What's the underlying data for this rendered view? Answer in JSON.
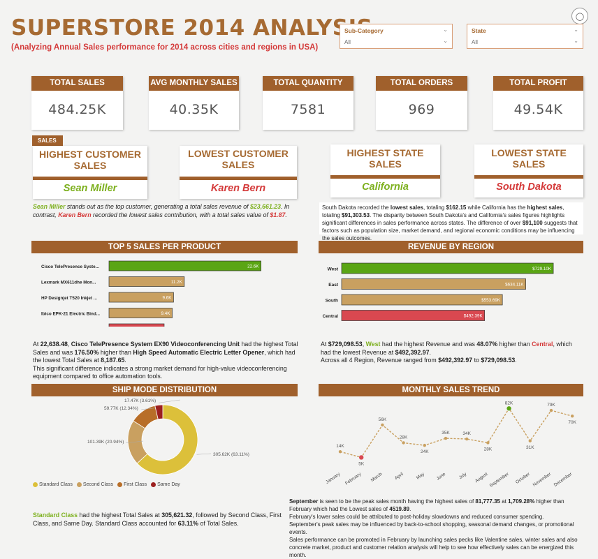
{
  "title": "SUPERSTORE 2014 ANALYSIS",
  "subtitle": "(Analyzing Annual Sales performance for 2014 across cities and regions in USA)",
  "filters": {
    "subcategory": {
      "label": "Sub-Category",
      "value": "All"
    },
    "state": {
      "label": "State",
      "value": "All"
    }
  },
  "kpis": [
    {
      "label": "TOTAL SALES",
      "value": "484.25K"
    },
    {
      "label": "AVG MONTHLY SALES",
      "value": "40.35K"
    },
    {
      "label": "TOTAL QUANTITY",
      "value": "7581"
    },
    {
      "label": "TOTAL ORDERS",
      "value": "969"
    },
    {
      "label": "TOTAL PROFIT",
      "value": "49.54K"
    }
  ],
  "sales_tag": "SALES",
  "cards": [
    {
      "label": "HIGHEST CUSTOMER SALES",
      "name": "Sean Miller"
    },
    {
      "label": "LOWEST CUSTOMER SALES",
      "name": "Karen Bern"
    },
    {
      "label": "HIGHEST STATE SALES",
      "name": "California"
    },
    {
      "label": "LOWEST STATE SALES",
      "name": "South Dakota"
    }
  ],
  "customer_note": {
    "p1": "Sean Miller",
    "p2": " stands out as the top customer, generating a total sales revenue of ",
    "p3": "$23,661.23",
    "p4": ". In contrast, ",
    "p5": "Karen Bern",
    "p6": " recorded the lowest sales contribution, with a total sales value of ",
    "p7": "$1.87",
    "p8": "."
  },
  "state_note": {
    "p1": "South Dakota recorded the ",
    "p2": "lowest sales",
    "p3": ", totaling ",
    "p4": "$162.15",
    "p5": " while California has the ",
    "p6": "highest sales",
    "p7": ", totaling ",
    "p8": "$91,303.53",
    "p9": ". The disparity between South Dakota's and California's sales figures highlights significant differences in sales performance across states. The difference of over ",
    "p10": "$91,100",
    "p11": " suggests that factors such as population size, market demand, and regional economic conditions may be influencing the sales outcomes."
  },
  "sections": {
    "top5": "TOP 5 SALES PER PRODUCT",
    "region": "REVENUE BY REGION",
    "shipmode": "SHIP MODE DISTRIBUTION",
    "monthly": "MONTHLY SALES TREND"
  },
  "product_note": {
    "p1": "At ",
    "p2": "22,638.48",
    "p3": ", ",
    "p4": "Cisco TelePresence System EX90 Videoconferencing Unit",
    "p5": " had the highest Total Sales and was ",
    "p6": "176.50%",
    "p7": " higher than ",
    "p8": "High Speed Automatic Electric Letter Opener",
    "p9": ", which had the lowest Total Sales at ",
    "p10": "8,187.65",
    "p11": ".",
    "p12": "This significant difference indicates a strong market demand for high-value videoconferencing equipment compared to office automation tools."
  },
  "region_note": {
    "p1": "At ",
    "p2": "$729,098.53",
    "p3": ", ",
    "p4": "West",
    "p5": " had the highest Revenue and was ",
    "p6": "48.07%",
    "p7": " higher than ",
    "p8": "Central",
    "p9": ", which had the lowest Revenue at ",
    "p10": "$492,392.97",
    "p11": ".",
    "p12": "Across all 4 Region, Revenue ranged from ",
    "p13": "$492,392.97",
    "p14": " to ",
    "p15": "$729,098.53",
    "p16": "."
  },
  "ship_note": {
    "p1": "Standard Class",
    "p2": " had the highest Total Sales at ",
    "p3": "305,621.32",
    "p4": ", followed by Second Class, First Class, and Same Day. Standard Class accounted for ",
    "p5": "63.11%",
    "p6": " of Total Sales."
  },
  "monthly_note": {
    "p1": "September",
    "p2": " is seen to be the peak sales month having the highest sales of ",
    "p3": "81,777.35",
    "p4": " at ",
    "p5": "1,709.28%",
    "p6": " higher than February which had the Lowest sales of ",
    "p7": "4519.89",
    "p8": ".",
    "l2": "February's lower sales could be attributed to post-holiday slowdowns and reduced consumer spending.",
    "l3": "September's peak sales may be influenced by back-to-school shopping, seasonal demand changes, or promotional events.",
    "l4": "Sales performance can be promoted in February by launching sales pecks like Valentine sales, winter sales and also concrete market, product and customer relation analysis will help to see how effectively sales can be energized this month."
  },
  "colors": {
    "brown": "#a0602c",
    "tan": "#c9a060",
    "green": "#5aa514",
    "red": "#d94850",
    "gold": "#dcc03a",
    "darkred": "#9c2020"
  },
  "chart_data": [
    {
      "type": "bar",
      "orientation": "horizontal",
      "categories": [
        "Cisco TelePresence Syste...",
        "Lexmark MX611dhe Mon...",
        "HP Designjet T520 Inkjet ...",
        "Ibico EPK-21 Electric Bind...",
        "High Speed Automatic El..."
      ],
      "values": [
        22.6,
        11.2,
        9.6,
        9.4,
        8.2
      ],
      "labels": [
        "22.6K",
        "11.2K",
        "9.6K",
        "9.4K",
        "8.2K"
      ],
      "xlim": [
        0,
        27
      ]
    },
    {
      "type": "bar",
      "orientation": "horizontal",
      "categories": [
        "West",
        "East",
        "South",
        "Central"
      ],
      "values": [
        729.1,
        634.11,
        553.69,
        492.39
      ],
      "labels": [
        "$729.10K",
        "$634.11K",
        "$553.69K",
        "$492.39K"
      ],
      "xlim": [
        0,
        830
      ]
    },
    {
      "type": "pie",
      "donut": true,
      "categories": [
        "Standard Class",
        "Second Class",
        "First Class",
        "Same Day"
      ],
      "values": [
        305.62,
        101.39,
        59.77,
        17.47
      ],
      "percent": [
        63.11,
        20.94,
        12.34,
        3.61
      ],
      "labels": [
        "305.62K (63.11%)",
        "101.39K (20.94%)",
        "59.77K (12.34%)",
        "17.47K (3.61%)"
      ],
      "colors": [
        "#dcc03a",
        "#c9a060",
        "#b86e28",
        "#9c2020"
      ],
      "legend": "bottom-left"
    },
    {
      "type": "line",
      "categories": [
        "January",
        "February",
        "March",
        "April",
        "May",
        "June",
        "July",
        "August",
        "September",
        "October",
        "November",
        "December"
      ],
      "values": [
        14,
        5,
        56,
        28,
        24,
        35,
        34,
        28,
        82,
        31,
        79,
        70
      ],
      "labels": [
        "14K",
        "5K",
        "56K",
        "28K",
        "24K",
        "35K",
        "34K",
        "28K",
        "82K",
        "31K",
        "79K",
        "70K"
      ],
      "ylim": [
        0,
        90
      ]
    }
  ]
}
